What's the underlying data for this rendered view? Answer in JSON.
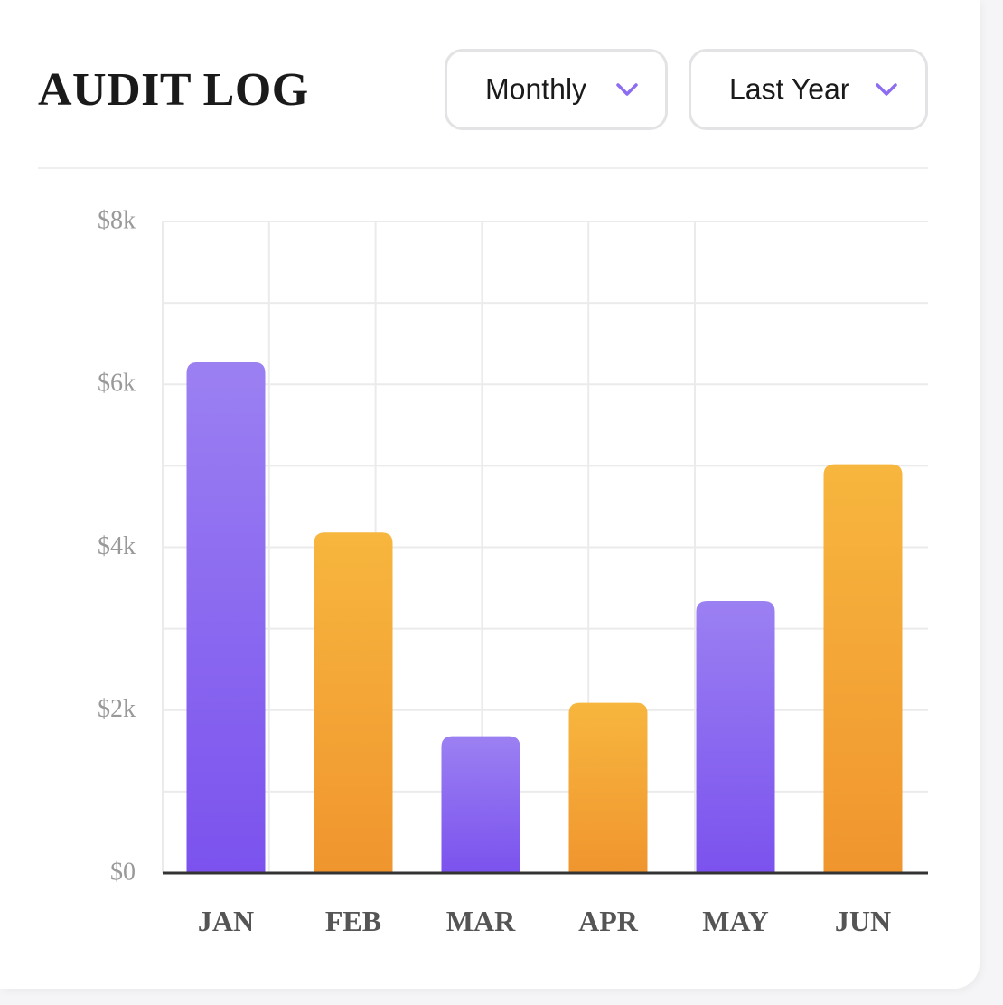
{
  "header": {
    "title": "AUDIT LOG",
    "period_dropdown": {
      "selected": "Monthly",
      "icon": "chevron-down-icon"
    },
    "range_dropdown": {
      "selected": "Last Year",
      "icon": "chevron-down-icon"
    }
  },
  "colors": {
    "accent": "#8c6cf0",
    "purple_top": "#9b80f2",
    "purple_bottom": "#7b52ee",
    "orange_top": "#f7b63e",
    "orange_bottom": "#f0952e",
    "grid": "#ebebeb",
    "axis": "#333333"
  },
  "chart_data": {
    "type": "bar",
    "categories": [
      "JAN",
      "FEB",
      "MAR",
      "APR",
      "MAY",
      "JUN"
    ],
    "values": [
      6270,
      4180,
      1680,
      2090,
      3340,
      5020
    ],
    "bar_colors": [
      "purple",
      "orange",
      "purple",
      "orange",
      "purple",
      "orange"
    ],
    "ylim": [
      0,
      8000
    ],
    "y_ticks": [
      0,
      2000,
      4000,
      6000,
      8000
    ],
    "y_tick_labels": [
      "$0",
      "$2k",
      "$4k",
      "$6k",
      "$8k"
    ],
    "grid": true,
    "title": "",
    "xlabel": "",
    "ylabel": ""
  }
}
